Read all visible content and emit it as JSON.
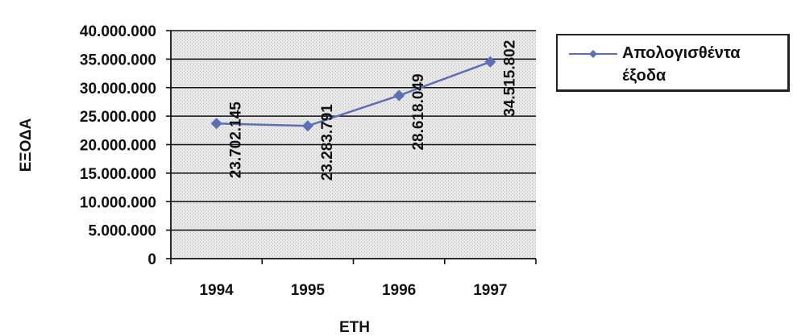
{
  "chart_data": {
    "type": "line",
    "categories": [
      "1994",
      "1995",
      "1996",
      "1997"
    ],
    "series": [
      {
        "name": "Απολογισθέντα έξοδα",
        "values": [
          23702145,
          23283791,
          28618049,
          34515802
        ],
        "data_labels": [
          "23.702.145",
          "23.283.791",
          "28.618.049",
          "34.515.802"
        ],
        "color": "#5b6fb6"
      }
    ],
    "xlabel": "ΕΤΗ",
    "ylabel": "ΕΞΟΔΑ",
    "ylim": [
      0,
      40000000
    ],
    "y_ticks": [
      0,
      5000000,
      10000000,
      15000000,
      20000000,
      25000000,
      30000000,
      35000000,
      40000000
    ],
    "y_tick_labels": [
      "0",
      "5.000.000",
      "10.000.000",
      "15.000.000",
      "20.000.000",
      "25.000.000",
      "30.000.000",
      "35.000.000",
      "40.000.000"
    ],
    "grid": true,
    "legend_position": "right"
  }
}
